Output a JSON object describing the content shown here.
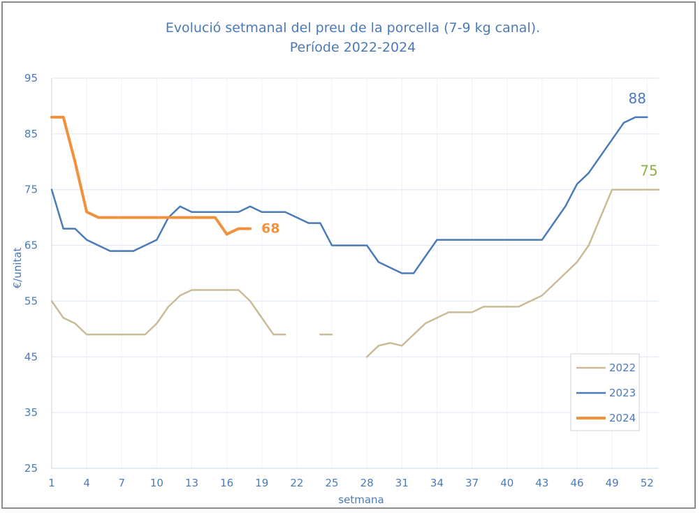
{
  "chart_data": {
    "type": "line",
    "title_line1": "Evolució setmanal del preu de la porcella (7-9 kg canal).",
    "title_line2": "Període 2022-2024",
    "xlabel": "setmana",
    "ylabel": "€/unitat",
    "xlim": [
      1,
      53
    ],
    "ylim": [
      25,
      95
    ],
    "yticks": [
      25,
      35,
      45,
      55,
      65,
      75,
      85,
      95
    ],
    "xticks": [
      1,
      4,
      7,
      10,
      13,
      16,
      19,
      22,
      25,
      28,
      31,
      34,
      37,
      40,
      43,
      46,
      49,
      52
    ],
    "grid": true,
    "legend_position": "bottom-right",
    "series": [
      {
        "name": "2022",
        "color": "#c9bb96",
        "width": 2.5,
        "segments": [
          [
            [
              1,
              55
            ],
            [
              2,
              52
            ],
            [
              3,
              51
            ],
            [
              4,
              49
            ],
            [
              5,
              49
            ],
            [
              6,
              49
            ],
            [
              7,
              49
            ],
            [
              8,
              49
            ],
            [
              9,
              49
            ],
            [
              10,
              51
            ],
            [
              11,
              54
            ],
            [
              12,
              56
            ],
            [
              13,
              57
            ],
            [
              14,
              57
            ],
            [
              15,
              57
            ],
            [
              16,
              57
            ],
            [
              17,
              57
            ],
            [
              18,
              55
            ],
            [
              19,
              52
            ],
            [
              20,
              49
            ],
            [
              21,
              49
            ]
          ],
          [
            [
              24,
              49
            ],
            [
              25,
              49
            ]
          ],
          [
            [
              28,
              45
            ],
            [
              29,
              47
            ],
            [
              30,
              47.5
            ],
            [
              31,
              47
            ],
            [
              32,
              49
            ],
            [
              33,
              51
            ],
            [
              34,
              52
            ],
            [
              35,
              53
            ],
            [
              36,
              53
            ],
            [
              37,
              53
            ],
            [
              38,
              54
            ],
            [
              39,
              54
            ],
            [
              40,
              54
            ],
            [
              41,
              54
            ],
            [
              42,
              55
            ],
            [
              43,
              56
            ],
            [
              44,
              58
            ],
            [
              45,
              60
            ],
            [
              46,
              62
            ],
            [
              47,
              65
            ],
            [
              48,
              70
            ],
            [
              49,
              75
            ],
            [
              50,
              75
            ],
            [
              51,
              75
            ],
            [
              52,
              75
            ],
            [
              53,
              75
            ]
          ]
        ],
        "end_label": "75",
        "end_label_color": "#8fb04a"
      },
      {
        "name": "2023",
        "color": "#4a7ab8",
        "width": 2.5,
        "segments": [
          [
            [
              1,
              75
            ],
            [
              2,
              68
            ],
            [
              3,
              68
            ],
            [
              4,
              66
            ],
            [
              5,
              65
            ],
            [
              6,
              64
            ],
            [
              7,
              64
            ],
            [
              8,
              64
            ],
            [
              9,
              65
            ],
            [
              10,
              66
            ],
            [
              11,
              70
            ],
            [
              12,
              72
            ],
            [
              13,
              71
            ],
            [
              14,
              71
            ],
            [
              15,
              71
            ],
            [
              16,
              71
            ],
            [
              17,
              71
            ],
            [
              18,
              72
            ],
            [
              19,
              71
            ],
            [
              20,
              71
            ],
            [
              21,
              71
            ],
            [
              22,
              70
            ],
            [
              23,
              69
            ],
            [
              24,
              69
            ],
            [
              25,
              65
            ],
            [
              26,
              65
            ],
            [
              27,
              65
            ],
            [
              28,
              65
            ],
            [
              29,
              62
            ],
            [
              30,
              61
            ],
            [
              31,
              60
            ],
            [
              32,
              60
            ],
            [
              33,
              63
            ],
            [
              34,
              66
            ],
            [
              35,
              66
            ],
            [
              36,
              66
            ],
            [
              37,
              66
            ],
            [
              38,
              66
            ],
            [
              39,
              66
            ],
            [
              40,
              66
            ],
            [
              41,
              66
            ],
            [
              42,
              66
            ],
            [
              43,
              66
            ],
            [
              44,
              69
            ],
            [
              45,
              72
            ],
            [
              46,
              76
            ],
            [
              47,
              78
            ],
            [
              48,
              81
            ],
            [
              49,
              84
            ],
            [
              50,
              87
            ],
            [
              51,
              88
            ],
            [
              52,
              88
            ]
          ]
        ],
        "end_label": "88",
        "end_label_color": "#4a7ab8"
      },
      {
        "name": "2024",
        "color": "#f2913d",
        "width": 4,
        "segments": [
          [
            [
              1,
              88
            ],
            [
              2,
              88
            ],
            [
              3,
              80
            ],
            [
              4,
              71
            ],
            [
              5,
              70
            ],
            [
              6,
              70
            ],
            [
              7,
              70
            ],
            [
              8,
              70
            ],
            [
              9,
              70
            ],
            [
              10,
              70
            ],
            [
              11,
              70
            ],
            [
              12,
              70
            ],
            [
              13,
              70
            ],
            [
              14,
              70
            ],
            [
              15,
              70
            ],
            [
              16,
              67
            ],
            [
              17,
              68
            ],
            [
              18,
              68
            ]
          ]
        ],
        "end_label": "68",
        "end_label_color": "#f2913d"
      }
    ]
  }
}
